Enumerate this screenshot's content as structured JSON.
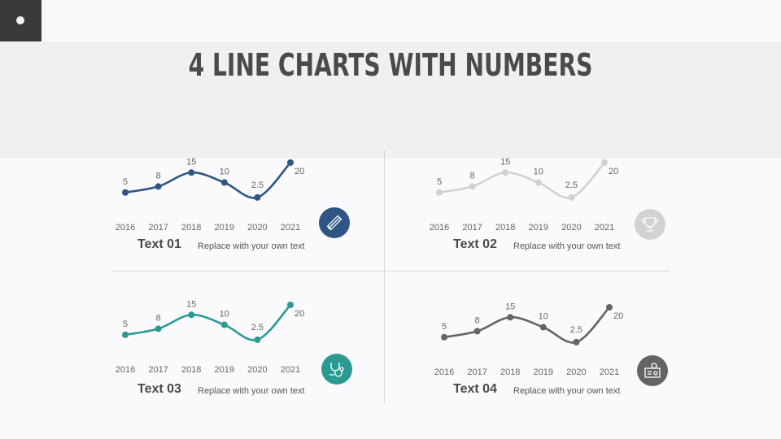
{
  "title": "4 LINE CHARTS WITH NUMBERS",
  "panels": [
    {
      "heading": "Text 01",
      "desc": "Replace with your own text",
      "color": "#2e5583",
      "icon": "pencil-ruler-icon"
    },
    {
      "heading": "Text 02",
      "desc": "Replace with your own text",
      "color": "#d2d2d2",
      "icon": "trophy-icon"
    },
    {
      "heading": "Text 03",
      "desc": "Replace with your own text",
      "color": "#2a9a93",
      "icon": "stethoscope-icon"
    },
    {
      "heading": "Text 04",
      "desc": "Replace with your own text",
      "color": "#646466",
      "icon": "id-card-icon"
    }
  ],
  "chart_data": [
    {
      "type": "line",
      "categories": [
        "2016",
        "2017",
        "2018",
        "2019",
        "2020",
        "2021"
      ],
      "values": [
        5,
        8,
        15,
        10,
        2.5,
        20
      ],
      "labels": [
        "5",
        "8",
        "15",
        "10",
        "2.5",
        "20"
      ],
      "color": "#2e5583"
    },
    {
      "type": "line",
      "categories": [
        "2016",
        "2017",
        "2018",
        "2019",
        "2020",
        "2021"
      ],
      "values": [
        5,
        8,
        15,
        10,
        2.5,
        20
      ],
      "labels": [
        "5",
        "8",
        "15",
        "10",
        "2.5",
        "20"
      ],
      "color": "#d2d2d2"
    },
    {
      "type": "line",
      "categories": [
        "2016",
        "2017",
        "2018",
        "2019",
        "2020",
        "2021"
      ],
      "values": [
        5,
        8,
        15,
        10,
        2.5,
        20
      ],
      "labels": [
        "5",
        "8",
        "15",
        "10",
        "2.5",
        "20"
      ],
      "color": "#2a9a93"
    },
    {
      "type": "line",
      "categories": [
        "2016",
        "2017",
        "2018",
        "2019",
        "2020",
        "2021"
      ],
      "values": [
        5,
        8,
        15,
        10,
        2.5,
        20
      ],
      "labels": [
        "5",
        "8",
        "15",
        "10",
        "2.5",
        "20"
      ],
      "color": "#646466"
    }
  ]
}
